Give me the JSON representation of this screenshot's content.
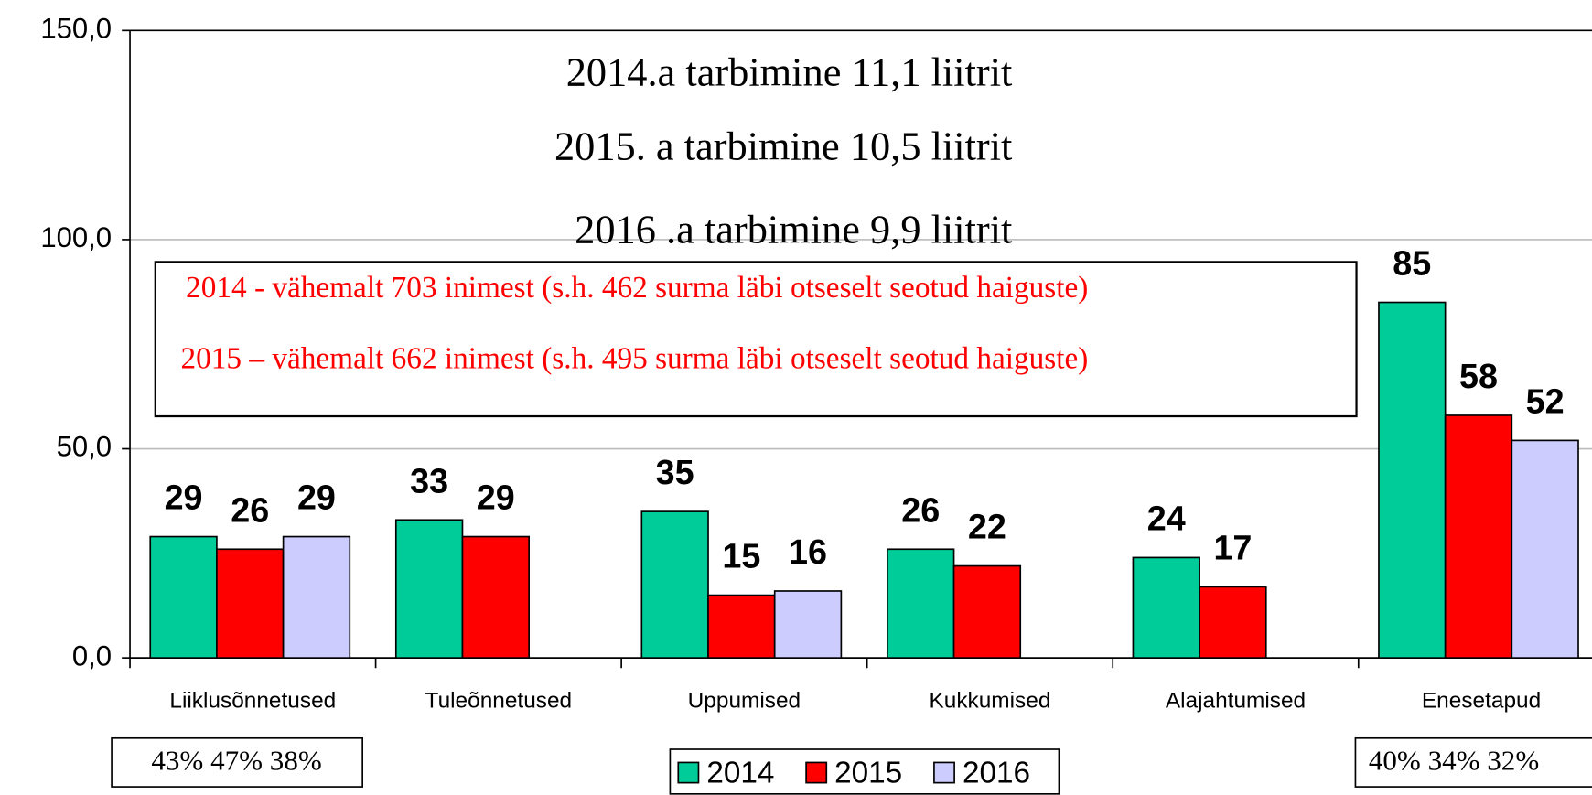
{
  "chart_data": {
    "type": "bar",
    "categories": [
      "Liiklusõnnetused",
      "Tuleõnnetused",
      "Uppumised",
      "Kukkumised",
      "Alajahtumised",
      "Enesetapud"
    ],
    "series": [
      {
        "name": "2014",
        "color": "#00cc99",
        "values": [
          29,
          33,
          35,
          26,
          24,
          85
        ]
      },
      {
        "name": "2015",
        "color": "#ff0000",
        "values": [
          26,
          29,
          15,
          22,
          17,
          58
        ]
      },
      {
        "name": "2016",
        "color": "#ccccff",
        "values": [
          29,
          null,
          16,
          null,
          null,
          52
        ]
      }
    ],
    "ylim": [
      0,
      150
    ],
    "yticks": [
      {
        "value": 0,
        "label": "0,0"
      },
      {
        "value": 50,
        "label": "50,0"
      },
      {
        "value": 100,
        "label": "100,0"
      },
      {
        "value": 150,
        "label": "150,0"
      }
    ],
    "grid": true,
    "annotations": [
      "2014.a  tarbimine 11,1 liitrit",
      "2015. a tarbimine 10,5 liitrit",
      "2016 .a tarbimine 9,9 liitrit"
    ],
    "red_notes": [
      "2014  - vähemalt 703 inimest (s.h. 462 surma läbi otseselt seotud haiguste)",
      "2015 – vähemalt 662 inimest (s.h. 495 surma läbi otseselt seotud haiguste)"
    ],
    "share_notes": [
      "43% 47%  38%",
      "40% 34%  32%"
    ]
  }
}
